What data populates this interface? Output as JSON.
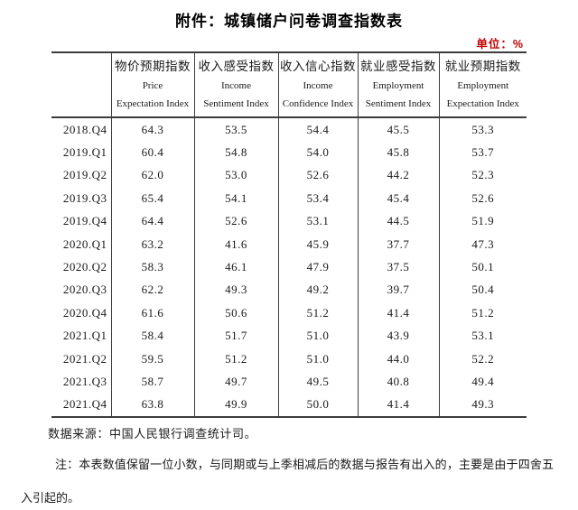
{
  "title": "附件：城镇储户问卷调查指数表",
  "unit_label": "单位：%",
  "colors": {
    "accent_red": "#c00000",
    "text": "#1a1a1a",
    "table_border": "#3c3c3c"
  },
  "table": {
    "corner_label": "",
    "columns": [
      {
        "zh": "物价预期指数",
        "en1": "Price",
        "en2": "Expectation Index"
      },
      {
        "zh": "收入感受指数",
        "en1": "Income",
        "en2": "Sentiment Index"
      },
      {
        "zh": "收入信心指数",
        "en1": "Income",
        "en2": "Confidence Index"
      },
      {
        "zh": "就业感受指数",
        "en1": "Employment",
        "en2": "Sentiment Index"
      },
      {
        "zh": "就业预期指数",
        "en1": "Employment",
        "en2": "Expectation Index"
      }
    ],
    "rows": [
      {
        "period": "2018.Q4",
        "values": [
          "64.3",
          "53.5",
          "54.4",
          "45.5",
          "53.3"
        ]
      },
      {
        "period": "2019.Q1",
        "values": [
          "60.4",
          "54.8",
          "54.0",
          "45.8",
          "53.7"
        ]
      },
      {
        "period": "2019.Q2",
        "values": [
          "62.0",
          "53.0",
          "52.6",
          "44.2",
          "52.3"
        ]
      },
      {
        "period": "2019.Q3",
        "values": [
          "65.4",
          "54.1",
          "53.4",
          "45.4",
          "52.6"
        ]
      },
      {
        "period": "2019.Q4",
        "values": [
          "64.4",
          "52.6",
          "53.1",
          "44.5",
          "51.9"
        ]
      },
      {
        "period": "2020.Q1",
        "values": [
          "63.2",
          "41.6",
          "45.9",
          "37.7",
          "47.3"
        ]
      },
      {
        "period": "2020.Q2",
        "values": [
          "58.3",
          "46.1",
          "47.9",
          "37.5",
          "50.1"
        ]
      },
      {
        "period": "2020.Q3",
        "values": [
          "62.2",
          "49.3",
          "49.2",
          "39.7",
          "50.4"
        ]
      },
      {
        "period": "2020.Q4",
        "values": [
          "61.6",
          "50.6",
          "51.2",
          "41.4",
          "51.2"
        ]
      },
      {
        "period": "2021.Q1",
        "values": [
          "58.4",
          "51.7",
          "51.0",
          "43.9",
          "53.1"
        ]
      },
      {
        "period": "2021.Q2",
        "values": [
          "59.5",
          "51.2",
          "51.0",
          "44.0",
          "52.2"
        ]
      },
      {
        "period": "2021.Q3",
        "values": [
          "58.7",
          "49.7",
          "49.5",
          "40.8",
          "49.4"
        ]
      },
      {
        "period": "2021.Q4",
        "values": [
          "63.8",
          "49.9",
          "50.0",
          "41.4",
          "49.3"
        ]
      }
    ]
  },
  "notes": {
    "source": "数据来源：中国人民银行调查统计司。",
    "rounding": "注：本表数值保留一位小数，与同期或与上季相减后的数据与报告有出入的，主要是由于四舍五入引起的。"
  }
}
